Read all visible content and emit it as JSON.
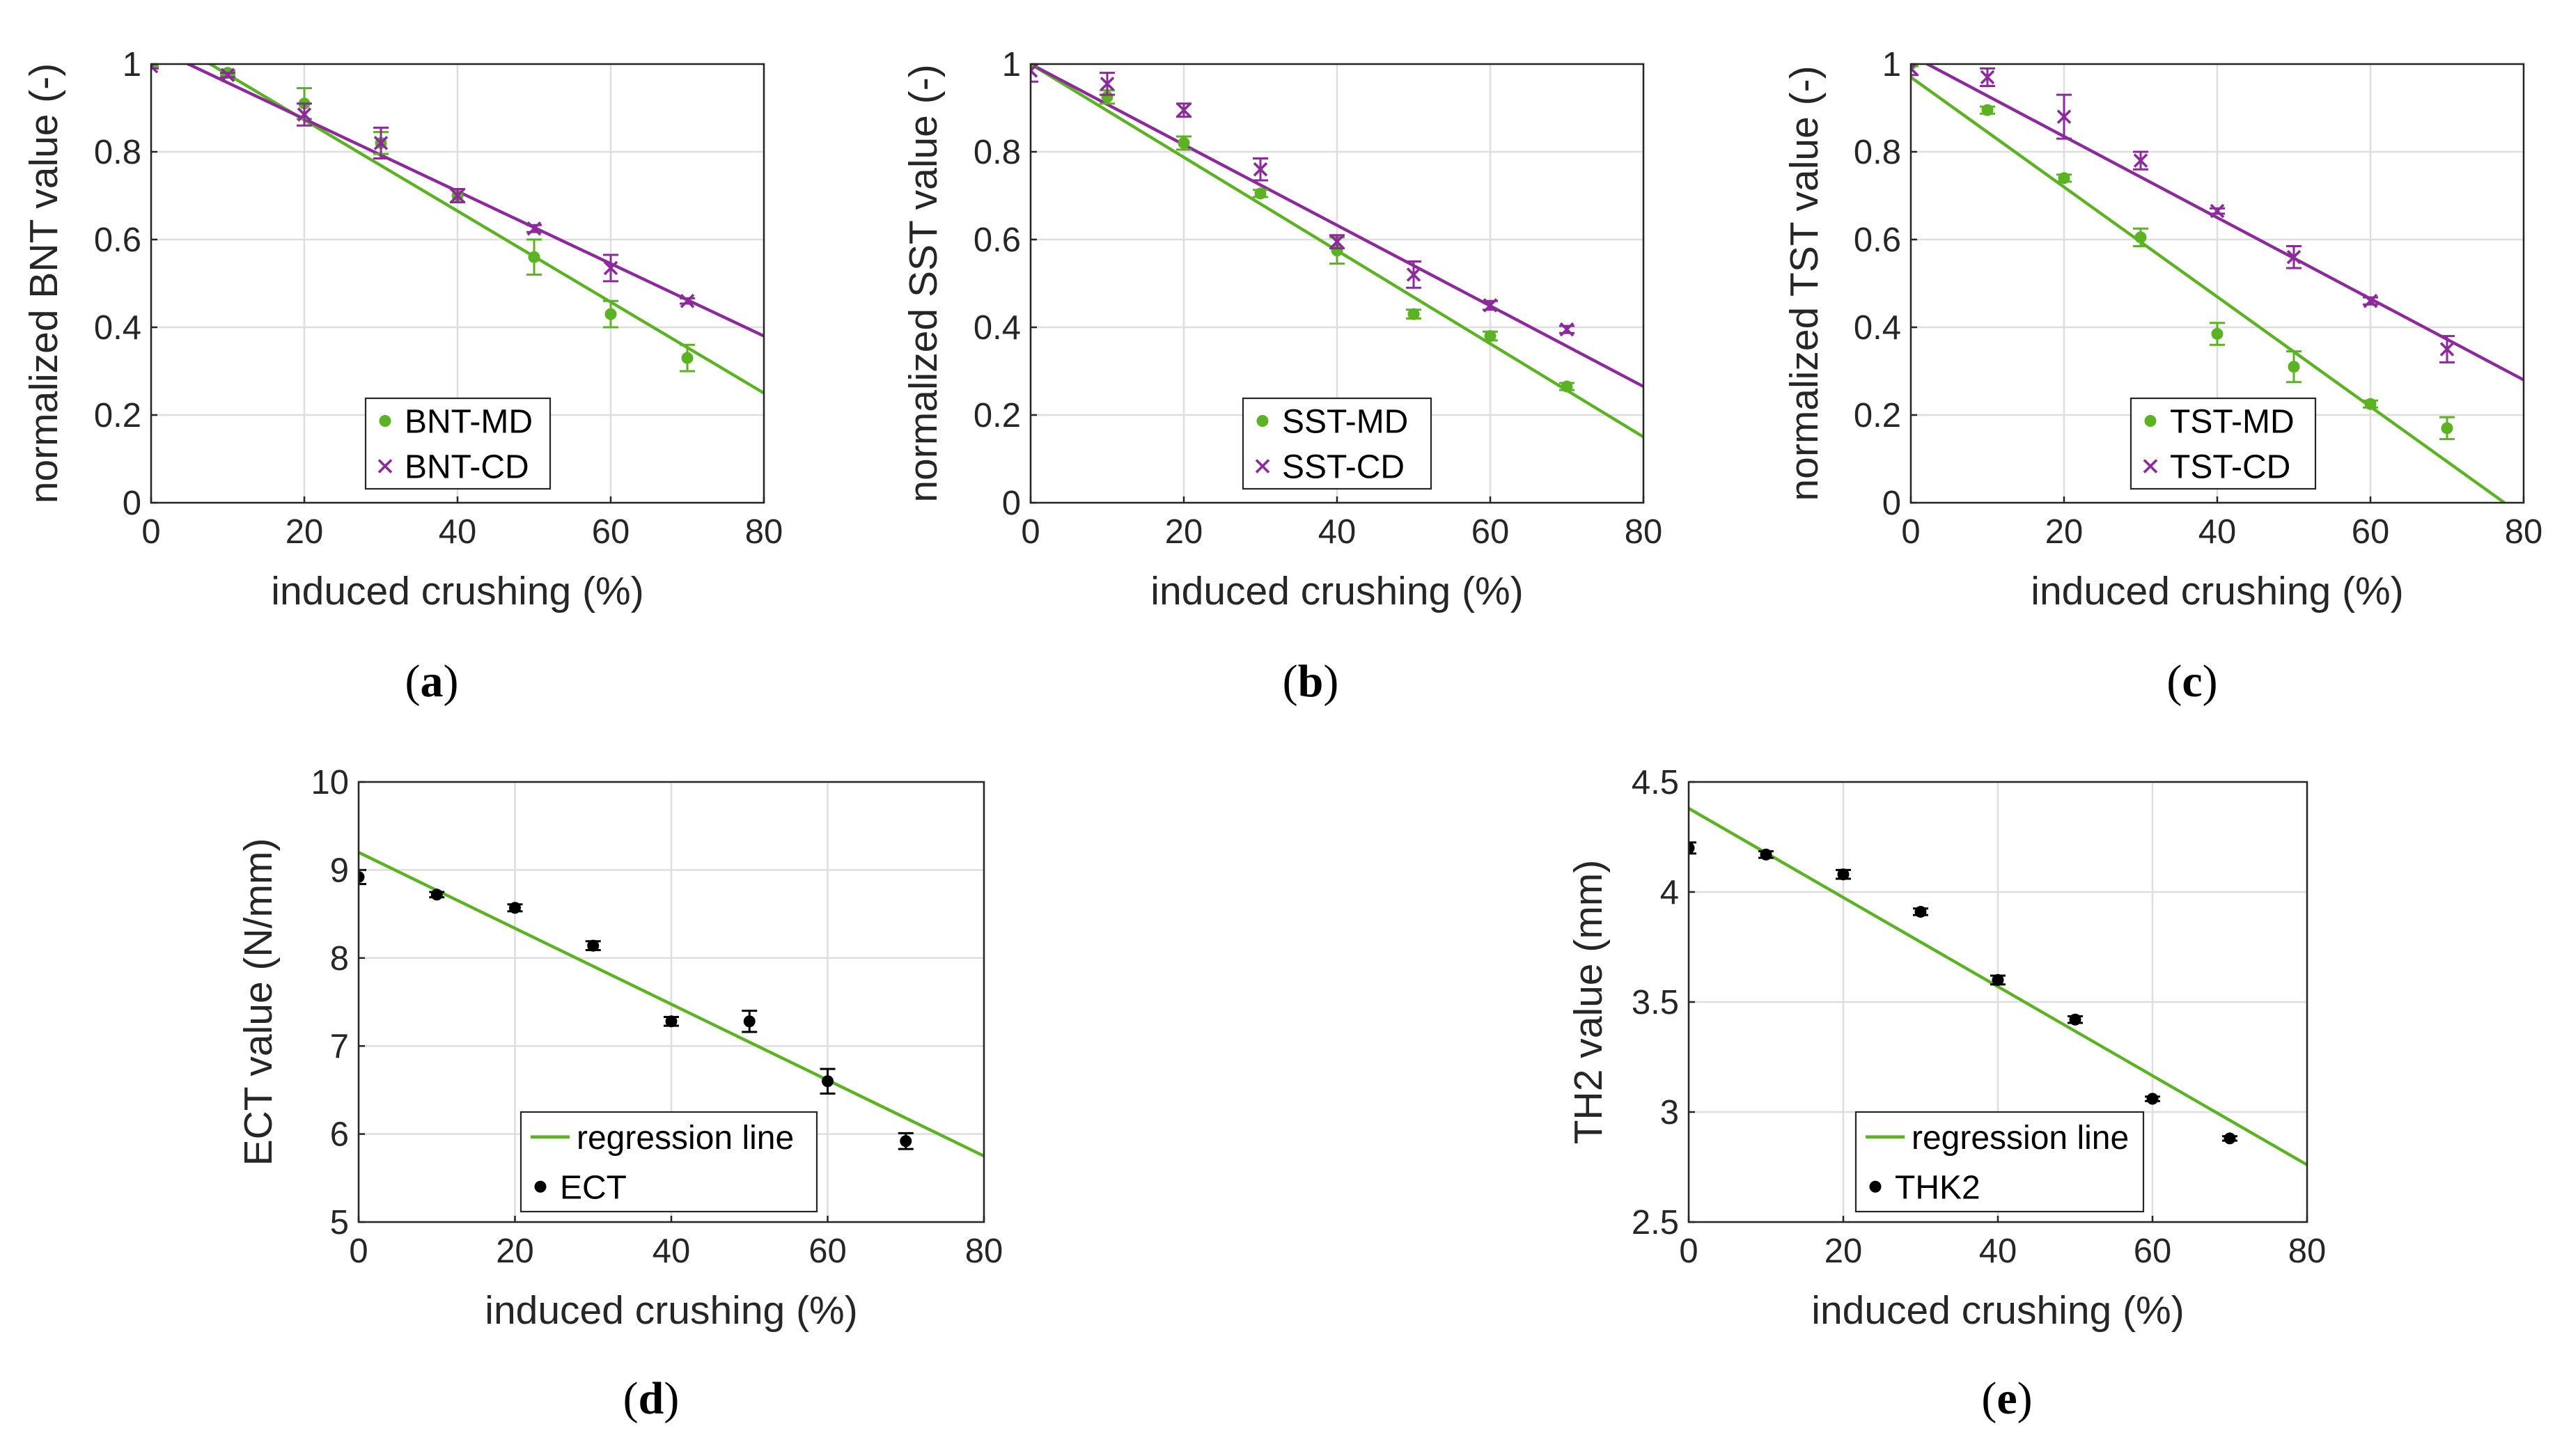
{
  "figure": {
    "captions": [
      "(a)",
      "(b)",
      "(c)",
      "(d)",
      "(e)"
    ]
  },
  "colors": {
    "md": "#5bb324",
    "cd": "#8c2a9b",
    "point": "#000000",
    "grid": "#dedede",
    "axis": "#262626"
  },
  "chart_data": [
    {
      "id": "a",
      "type": "scatter",
      "caption": "(a)",
      "xlabel": "induced crushing (%)",
      "ylabel": "normalized BNT value (-)",
      "xlim": [
        0,
        80
      ],
      "ylim": [
        0,
        1
      ],
      "xticks": [
        0,
        20,
        40,
        60,
        80
      ],
      "xtick_labels": [
        "0",
        "20",
        "40",
        "60",
        "80"
      ],
      "yticks": [
        0,
        0.2,
        0.4,
        0.6,
        0.8,
        1
      ],
      "ytick_labels": [
        "0",
        "0.2",
        "0.4",
        "0.6",
        "0.8",
        "1"
      ],
      "grid": true,
      "legend": "bottom-center",
      "series": [
        {
          "name": "BNT-MD",
          "marker": "dot",
          "color": "#5bb324",
          "x": [
            0,
            10,
            20,
            30,
            40,
            50,
            60,
            70
          ],
          "y": [
            1.0,
            0.98,
            0.91,
            0.82,
            0.7,
            0.56,
            0.43,
            0.33
          ],
          "err": [
            0.005,
            0.005,
            0.035,
            0.025,
            0.015,
            0.04,
            0.03,
            0.03
          ],
          "fit_line": [
            0,
            1.08,
            80,
            0.25
          ]
        },
        {
          "name": "BNT-CD",
          "marker": "x",
          "color": "#8c2a9b",
          "x": [
            0,
            10,
            20,
            30,
            40,
            50,
            60,
            70
          ],
          "y": [
            0.995,
            0.975,
            0.885,
            0.82,
            0.7,
            0.625,
            0.535,
            0.46
          ],
          "err": [
            0.005,
            0.005,
            0.025,
            0.035,
            0.015,
            0.008,
            0.03,
            0.006
          ],
          "fit_line": [
            0,
            1.04,
            80,
            0.38
          ]
        }
      ]
    },
    {
      "id": "b",
      "type": "scatter",
      "caption": "(b)",
      "xlabel": "induced crushing (%)",
      "ylabel": "normalized SST value (-)",
      "xlim": [
        0,
        80
      ],
      "ylim": [
        0,
        1
      ],
      "xticks": [
        0,
        20,
        40,
        60,
        80
      ],
      "xtick_labels": [
        "0",
        "20",
        "40",
        "60",
        "80"
      ],
      "yticks": [
        0,
        0.2,
        0.4,
        0.6,
        0.8,
        1
      ],
      "ytick_labels": [
        "0",
        "0.2",
        "0.4",
        "0.6",
        "0.8",
        "1"
      ],
      "grid": true,
      "legend": "bottom-center",
      "series": [
        {
          "name": "SST-MD",
          "marker": "dot",
          "color": "#5bb324",
          "x": [
            0,
            10,
            20,
            30,
            40,
            50,
            60,
            70
          ],
          "y": [
            1.0,
            0.925,
            0.82,
            0.705,
            0.575,
            0.43,
            0.38,
            0.265
          ],
          "err": [
            0.005,
            0.015,
            0.015,
            0.008,
            0.03,
            0.01,
            0.01,
            0.008
          ],
          "fit_line": [
            0,
            1.0,
            80,
            0.15
          ]
        },
        {
          "name": "SST-CD",
          "marker": "x",
          "color": "#8c2a9b",
          "x": [
            0,
            10,
            20,
            30,
            40,
            50,
            60,
            70
          ],
          "y": [
            0.985,
            0.955,
            0.895,
            0.76,
            0.595,
            0.52,
            0.45,
            0.395
          ],
          "err": [
            0.025,
            0.025,
            0.015,
            0.025,
            0.015,
            0.03,
            0.01,
            0.008
          ],
          "fit_line": [
            0,
            1.0,
            80,
            0.265
          ]
        }
      ]
    },
    {
      "id": "c",
      "type": "scatter",
      "caption": "(c)",
      "xlabel": "induced crushing (%)",
      "ylabel": "normalized TST value (-)",
      "xlim": [
        0,
        80
      ],
      "ylim": [
        0,
        1
      ],
      "xticks": [
        0,
        20,
        40,
        60,
        80
      ],
      "xtick_labels": [
        "0",
        "20",
        "40",
        "60",
        "80"
      ],
      "yticks": [
        0,
        0.2,
        0.4,
        0.6,
        0.8,
        1
      ],
      "ytick_labels": [
        "0",
        "0.2",
        "0.4",
        "0.6",
        "0.8",
        "1"
      ],
      "grid": true,
      "legend": "bottom-right",
      "series": [
        {
          "name": "TST-MD",
          "marker": "dot",
          "color": "#5bb324",
          "x": [
            0,
            10,
            20,
            30,
            40,
            50,
            60,
            70
          ],
          "y": [
            1.0,
            0.895,
            0.74,
            0.605,
            0.385,
            0.31,
            0.225,
            0.17
          ],
          "err": [
            0.005,
            0.008,
            0.008,
            0.02,
            0.025,
            0.035,
            0.008,
            0.025
          ],
          "fit_line": [
            0,
            0.97,
            77.5,
            0.0
          ]
        },
        {
          "name": "TST-CD",
          "marker": "x",
          "color": "#8c2a9b",
          "x": [
            0,
            10,
            20,
            30,
            40,
            50,
            60,
            70
          ],
          "y": [
            0.99,
            0.97,
            0.88,
            0.78,
            0.665,
            0.56,
            0.46,
            0.35
          ],
          "err": [
            0.015,
            0.02,
            0.05,
            0.02,
            0.006,
            0.025,
            0.008,
            0.03
          ],
          "fit_line": [
            0,
            1.02,
            80,
            0.28
          ]
        }
      ]
    },
    {
      "id": "d",
      "type": "scatter",
      "caption": "(d)",
      "xlabel": "induced crushing (%)",
      "ylabel": "ECT value (N/mm)",
      "xlim": [
        0,
        80
      ],
      "ylim": [
        5,
        10
      ],
      "xticks": [
        0,
        20,
        40,
        60,
        80
      ],
      "xtick_labels": [
        "0",
        "20",
        "40",
        "60",
        "80"
      ],
      "yticks": [
        5,
        6,
        7,
        8,
        9,
        10
      ],
      "ytick_labels": [
        "5",
        "6",
        "7",
        "8",
        "9",
        "10"
      ],
      "grid": true,
      "legend": "bottom-right",
      "series": [
        {
          "name": "regression line",
          "marker": "line",
          "color": "#5bb324",
          "fit_line": [
            0,
            9.2,
            80,
            5.75
          ]
        },
        {
          "name": "ECT",
          "marker": "dot",
          "color": "#000000",
          "x": [
            0,
            10,
            20,
            30,
            40,
            50,
            60,
            70
          ],
          "y": [
            8.92,
            8.72,
            8.57,
            8.14,
            7.28,
            7.28,
            6.6,
            5.92
          ],
          "err": [
            0.08,
            0.03,
            0.04,
            0.05,
            0.05,
            0.12,
            0.14,
            0.09
          ]
        }
      ]
    },
    {
      "id": "e",
      "type": "scatter",
      "caption": "(e)",
      "xlabel": "induced crushing (%)",
      "ylabel": "TH2 value (mm)",
      "xlim": [
        0,
        80
      ],
      "ylim": [
        2.5,
        4.5
      ],
      "xticks": [
        0,
        20,
        40,
        60,
        80
      ],
      "xtick_labels": [
        "0",
        "20",
        "40",
        "60",
        "80"
      ],
      "yticks": [
        2.5,
        3,
        3.5,
        4,
        4.5
      ],
      "ytick_labels": [
        "2.5",
        "3",
        "3.5",
        "4",
        "4.5"
      ],
      "grid": true,
      "legend": "bottom-right",
      "series": [
        {
          "name": "regression line",
          "marker": "line",
          "color": "#5bb324",
          "fit_line": [
            0,
            4.38,
            80,
            2.76
          ]
        },
        {
          "name": "THK2",
          "marker": "dot",
          "color": "#000000",
          "x": [
            0,
            10,
            20,
            30,
            40,
            50,
            60,
            70
          ],
          "y": [
            4.2,
            4.17,
            4.08,
            3.91,
            3.6,
            3.42,
            3.06,
            2.88
          ],
          "err": [
            0.025,
            0.015,
            0.02,
            0.015,
            0.02,
            0.015,
            0.01,
            0.01
          ]
        }
      ]
    }
  ]
}
